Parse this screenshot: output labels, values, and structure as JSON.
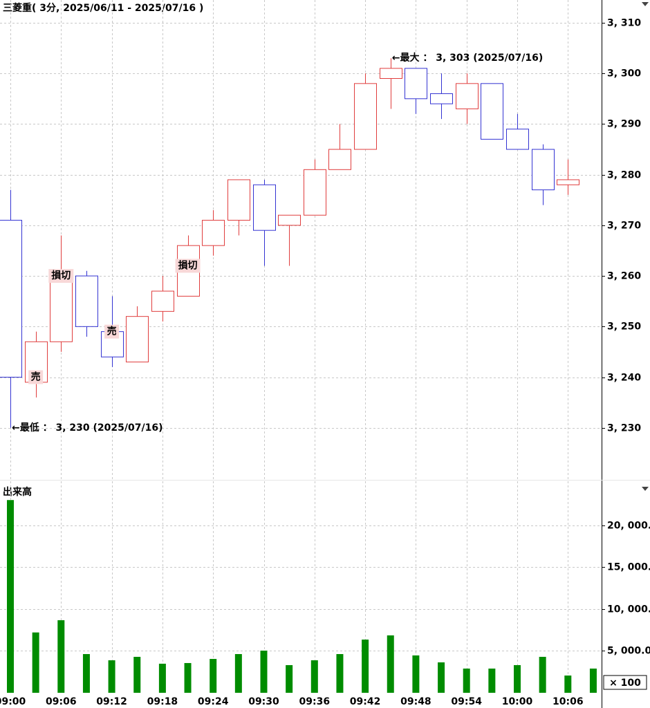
{
  "chart_data": {
    "type": "candlestick",
    "title": "三菱重( 3分, 2025/06/11 - 2025/07/16 )",
    "categories": [
      "09:00",
      null,
      "09:06",
      null,
      "09:12",
      null,
      "09:18",
      null,
      "09:24",
      null,
      "09:30",
      null,
      "09:36",
      null,
      "09:42",
      null,
      "09:48",
      null,
      "09:54",
      null,
      "10:00",
      null,
      "10:06",
      null
    ],
    "open": [
      3271,
      3239,
      3247,
      3260,
      3249,
      3243,
      3253,
      3256,
      3266,
      3271,
      3278,
      3270,
      3272,
      3281,
      3285,
      3299,
      3301,
      3296,
      3293,
      3298,
      3289,
      3285,
      3278,
      null
    ],
    "high": [
      3277,
      3249,
      3268,
      3261,
      3256,
      3254,
      3260,
      3268,
      3273,
      3279,
      3279,
      3272,
      3283,
      3290,
      3300,
      3303,
      3301,
      3300,
      3300,
      3298,
      3292,
      3286,
      3283,
      null
    ],
    "low": [
      3230,
      3236,
      3245,
      3248,
      3242,
      3243,
      3251,
      3256,
      3264,
      3268,
      3262,
      3262,
      3272,
      3281,
      3285,
      3293,
      3292,
      3291,
      3290,
      3287,
      3285,
      3274,
      3276,
      null
    ],
    "close": [
      3240,
      3247,
      3260,
      3250,
      3244,
      3252,
      3257,
      3266,
      3271,
      3279,
      3269,
      3272,
      3281,
      3285,
      3298,
      3301,
      3295,
      3294,
      3298,
      3287,
      3285,
      3277,
      3279,
      null
    ],
    "up_color": "#e03c3c",
    "down_color": "#3232d2",
    "ylim": [
      3220,
      3314.5
    ],
    "yticks": [
      {
        "value": 3230,
        "label": "3, 230"
      },
      {
        "value": 3240,
        "label": "3, 240"
      },
      {
        "value": 3250,
        "label": "3, 250"
      },
      {
        "value": 3260,
        "label": "3, 260"
      },
      {
        "value": 3270,
        "label": "3, 270"
      },
      {
        "value": 3280,
        "label": "3, 280"
      },
      {
        "value": 3290,
        "label": "3, 290"
      },
      {
        "value": 3300,
        "label": "3, 300"
      },
      {
        "value": 3310,
        "label": "3, 310"
      }
    ],
    "grid": true,
    "extremes": [
      {
        "text": "←最大 ： 3, 303 (2025/07/16)",
        "index": 15,
        "field": "high"
      },
      {
        "text": "←最低 ： 3, 230 (2025/07/16)",
        "index": 0,
        "field": "low"
      }
    ],
    "signals": [
      {
        "label": "売",
        "index": 1,
        "price": 3240
      },
      {
        "label": "損切",
        "index": 2,
        "price": 3260
      },
      {
        "label": "売",
        "index": 4,
        "price": 3249
      },
      {
        "label": "損切",
        "index": 7,
        "price": 3262
      }
    ],
    "volume": {
      "type": "bar",
      "title": "出来高",
      "unit_label": "× 100",
      "color": "#008c00",
      "values": [
        23000,
        7200,
        8660,
        4620,
        3880,
        4290,
        3470,
        3550,
        4040,
        4620,
        5030,
        3300,
        3880,
        4620,
        6350,
        6850,
        4460,
        3630,
        2890,
        2890,
        3300,
        4290,
        2060,
        2890
      ],
      "ylim": [
        0,
        25000
      ],
      "yticks": [
        {
          "value": 5000,
          "label": "5, 000.0"
        },
        {
          "value": 10000,
          "label": "10, 000."
        },
        {
          "value": 15000,
          "label": "15, 000."
        },
        {
          "value": 20000,
          "label": "20, 000."
        }
      ]
    }
  }
}
